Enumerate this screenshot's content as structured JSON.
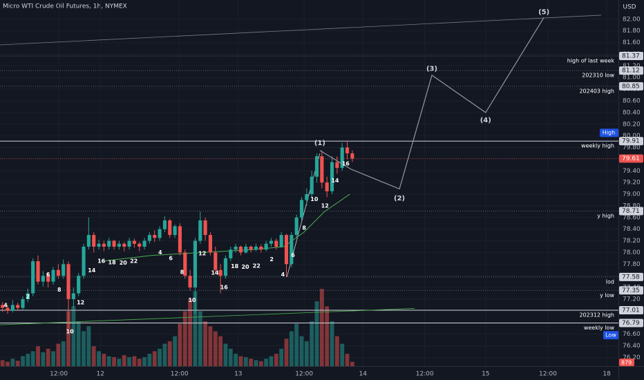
{
  "chart_data": {
    "type": "candlestick",
    "title": "Micro WTI Crude Oil Futures, 1h, NYMEX",
    "currency": "USD",
    "up_color": "#26a69a",
    "down_color": "#ef5350",
    "xlim": [
      0,
      122
    ],
    "ylim": [
      76.05,
      82.33
    ],
    "vlim": [
      0,
      18000
    ],
    "grid": true,
    "xticks": [
      {
        "value": 11.6,
        "label": "12:00"
      },
      {
        "value": 19.8,
        "label": "12"
      },
      {
        "value": 35.4,
        "label": "12:00"
      },
      {
        "value": 47,
        "label": "13"
      },
      {
        "value": 60,
        "label": "12:00"
      },
      {
        "value": 71.6,
        "label": "14"
      },
      {
        "value": 83.8,
        "label": "12:00"
      },
      {
        "value": 95.8,
        "label": "15"
      },
      {
        "value": 108.1,
        "label": "12:00"
      },
      {
        "value": 119.7,
        "label": "18"
      }
    ],
    "yticks": [
      {
        "value": 76.2,
        "label": "76.20"
      },
      {
        "value": 76.4,
        "label": "76.40"
      },
      {
        "value": 76.6,
        "label": "76.60"
      },
      {
        "value": 76.8,
        "label": "76.80"
      },
      {
        "value": 77,
        "label": "77.00"
      },
      {
        "value": 77.2,
        "label": "77.20"
      },
      {
        "value": 77.4,
        "label": "77.40"
      },
      {
        "value": 77.6,
        "label": "77.60"
      },
      {
        "value": 77.8,
        "label": "77.80"
      },
      {
        "value": 78,
        "label": "78.00"
      },
      {
        "value": 78.2,
        "label": "78.20"
      },
      {
        "value": 78.4,
        "label": "78.40"
      },
      {
        "value": 78.6,
        "label": "78.60"
      },
      {
        "value": 78.8,
        "label": "78.80"
      },
      {
        "value": 79,
        "label": "79.00"
      },
      {
        "value": 79.2,
        "label": "79.20"
      },
      {
        "value": 79.4,
        "label": "79.40"
      },
      {
        "value": 79.6,
        "label": "79.60"
      },
      {
        "value": 79.8,
        "label": "79.80"
      },
      {
        "value": 80,
        "label": "80.00"
      },
      {
        "value": 80.2,
        "label": "80.20"
      },
      {
        "value": 80.4,
        "label": "80.40"
      },
      {
        "value": 80.6,
        "label": "80.60"
      },
      {
        "value": 80.8,
        "label": "80.80"
      },
      {
        "value": 81,
        "label": "81.00"
      },
      {
        "value": 81.2,
        "label": "81.20"
      },
      {
        "value": 81.4,
        "label": "81.40"
      },
      {
        "value": 81.6,
        "label": "81.60"
      },
      {
        "value": 81.8,
        "label": "81.80"
      },
      {
        "value": 82,
        "label": "82.00"
      }
    ],
    "candles": {
      "x": [
        0.5,
        1.5,
        2.5,
        3.5,
        4.5,
        5.5,
        6.5,
        7.5,
        8.5,
        9.5,
        10.5,
        11.5,
        12.5,
        13.5,
        14.5,
        15.5,
        16.5,
        17.5,
        18.5,
        19.5,
        20.5,
        21.5,
        22.5,
        23.5,
        24.5,
        25.5,
        26.5,
        27.5,
        28.5,
        29.5,
        30.5,
        31.5,
        32.5,
        33.5,
        34.5,
        35.5,
        36.5,
        37.5,
        38.5,
        39.5,
        40.5,
        41.5,
        42.5,
        43.5,
        44.5,
        45.5,
        46.5,
        47.5,
        48.5,
        49.5,
        50.5,
        51.5,
        52.5,
        53.5,
        54.5,
        55.5,
        56.5,
        57.5,
        58.5,
        59.5,
        60.5,
        61.5,
        62.5,
        63.5,
        64.5,
        65.5,
        66.5,
        67.5,
        68.5,
        69.5
      ],
      "open": [
        77.1,
        77.05,
        77.0,
        77.1,
        77.05,
        77.2,
        77.3,
        77.85,
        77.5,
        77.6,
        77.5,
        77.7,
        77.6,
        77.8,
        77.2,
        77.3,
        77.6,
        78.1,
        78.3,
        78.1,
        78.15,
        78.1,
        78.2,
        78.1,
        78.15,
        78.1,
        78.2,
        78.15,
        78.1,
        78.2,
        78.3,
        78.25,
        78.4,
        78.55,
        78.3,
        78.45,
        78.0,
        77.6,
        77.4,
        78.2,
        78.55,
        78.3,
        78.0,
        77.7,
        77.6,
        77.9,
        78.05,
        78.1,
        78.0,
        78.1,
        78.05,
        78.1,
        78.05,
        78.15,
        78.2,
        78.1,
        78.3,
        77.8,
        78.3,
        78.6,
        78.9,
        79.0,
        79.3,
        79.65,
        79.2,
        79.05,
        79.55,
        79.45,
        79.8,
        79.7
      ],
      "high": [
        77.15,
        77.1,
        77.18,
        77.14,
        77.25,
        77.38,
        77.9,
        77.95,
        77.68,
        77.65,
        77.75,
        77.8,
        77.88,
        77.85,
        77.4,
        77.65,
        78.15,
        78.6,
        78.35,
        78.22,
        78.2,
        78.25,
        78.22,
        78.2,
        78.18,
        78.25,
        78.24,
        78.18,
        78.25,
        78.35,
        78.38,
        78.45,
        78.62,
        78.58,
        78.48,
        78.5,
        78.05,
        77.7,
        78.25,
        78.7,
        78.6,
        78.35,
        78.1,
        77.8,
        77.95,
        78.1,
        78.15,
        78.12,
        78.15,
        78.12,
        78.15,
        78.14,
        78.2,
        78.25,
        78.24,
        78.35,
        78.32,
        78.35,
        78.65,
        78.95,
        79.1,
        79.4,
        79.7,
        79.75,
        79.3,
        79.65,
        79.65,
        79.88,
        79.91,
        79.75
      ],
      "low": [
        76.98,
        76.95,
        76.97,
        77.0,
        77.02,
        77.15,
        77.25,
        77.45,
        77.42,
        77.4,
        77.45,
        77.55,
        77.55,
        76.7,
        77.05,
        77.25,
        77.55,
        78.05,
        78.0,
        78.05,
        78.02,
        78.05,
        78.05,
        78.05,
        78.02,
        78.05,
        78.08,
        78.02,
        78.05,
        78.15,
        78.18,
        78.2,
        78.35,
        78.25,
        78.25,
        77.95,
        77.55,
        77.35,
        76.95,
        78.15,
        78.2,
        77.95,
        77.65,
        77.3,
        77.55,
        77.85,
        78.0,
        77.95,
        77.98,
        78.0,
        78.02,
        78.0,
        78.02,
        78.1,
        78.05,
        78.08,
        77.58,
        77.75,
        78.25,
        78.55,
        78.8,
        78.95,
        79.2,
        79.1,
        78.95,
        79.0,
        79.35,
        79.4,
        79.6,
        79.55
      ],
      "close": [
        77.05,
        77.0,
        77.1,
        77.05,
        77.2,
        77.3,
        77.85,
        77.5,
        77.6,
        77.5,
        77.7,
        77.6,
        77.8,
        77.2,
        77.3,
        77.6,
        78.1,
        78.3,
        78.1,
        78.15,
        78.1,
        78.2,
        78.1,
        78.15,
        78.1,
        78.2,
        78.15,
        78.1,
        78.2,
        78.3,
        78.25,
        78.4,
        78.55,
        78.3,
        78.45,
        78.0,
        77.6,
        77.4,
        78.2,
        78.55,
        78.3,
        78.0,
        77.7,
        77.6,
        77.9,
        78.05,
        78.1,
        78.0,
        78.1,
        78.05,
        78.1,
        78.05,
        78.15,
        78.2,
        78.1,
        78.3,
        77.8,
        78.3,
        78.6,
        78.9,
        79.0,
        79.3,
        79.65,
        79.2,
        79.05,
        79.55,
        79.45,
        79.8,
        79.7,
        79.61
      ],
      "volume": [
        1200,
        900,
        1500,
        1100,
        2000,
        2500,
        3000,
        4000,
        2800,
        3500,
        3000,
        4500,
        5000,
        11000,
        12000,
        9000,
        7000,
        8000,
        4000,
        3000,
        2500,
        2000,
        1800,
        1500,
        2200,
        1800,
        2000,
        1500,
        1800,
        2500,
        3000,
        3500,
        4500,
        5000,
        6000,
        8500,
        11000,
        13500,
        15000,
        11000,
        9000,
        8000,
        7000,
        6000,
        4500,
        3500,
        2500,
        2000,
        1800,
        1500,
        1200,
        1000,
        1500,
        2000,
        2500,
        3500,
        5500,
        7000,
        8500,
        6000,
        5000,
        9000,
        13000,
        15500,
        12000,
        9000,
        6000,
        4500,
        2500,
        879
      ]
    },
    "ma": {
      "color": "#4caf50",
      "x": [
        20,
        30,
        40,
        50,
        56,
        60,
        64,
        69
      ],
      "values": [
        77.85,
        77.95,
        78.0,
        78.05,
        78.1,
        78.35,
        78.7,
        79.0
      ]
    },
    "levels": [
      {
        "price": 81.37,
        "label": "high of last week",
        "style": "dotted"
      },
      {
        "price": 81.12,
        "label": "202310 low",
        "style": "dotted"
      },
      {
        "price": 80.85,
        "label": "202403 high",
        "style": "dotted"
      },
      {
        "price": 79.91,
        "label": "weekly high",
        "style": "solid"
      },
      {
        "price": 78.71,
        "label": "y high",
        "style": "dotted"
      },
      {
        "price": 77.58,
        "label": "lod",
        "style": "dotted"
      },
      {
        "price": 77.35,
        "label": "y low",
        "style": "dotted"
      },
      {
        "price": 77.01,
        "label": "202312 high",
        "style": "solid"
      },
      {
        "price": 76.79,
        "label": "weekly low",
        "style": "solid"
      }
    ],
    "high_tag": "High",
    "low_tag": "Low",
    "trendlines": [
      {
        "color": "#787b86",
        "x": [
          0,
          118.6
        ],
        "values": [
          81.56,
          82.07
        ]
      },
      {
        "color": "#4caf50",
        "x": [
          0,
          81.8
        ],
        "values": [
          76.76,
          77.04
        ]
      },
      {
        "color": "#d1d4dc",
        "x": [
          56.6,
          63.1
        ],
        "values": [
          77.58,
          79.7
        ]
      }
    ],
    "wave": {
      "color": "#9598a1",
      "x": [
        63.1,
        69.2,
        78.8,
        85.2,
        95.8,
        107.3
      ],
      "values": [
        79.75,
        79.43,
        79.09,
        81.04,
        80.4,
        82.03
      ]
    },
    "wave_labels": [
      {
        "label": "(1)",
        "x": 63.1,
        "price": 79.88
      },
      {
        "label": "(2)",
        "x": 78.8,
        "price": 78.93
      },
      {
        "label": "(3)",
        "x": 85.2,
        "price": 81.15
      },
      {
        "label": "(4)",
        "x": 95.8,
        "price": 80.27
      },
      {
        "label": "(5)",
        "x": 107.3,
        "price": 82.12
      }
    ],
    "counts": [
      {
        "label": "4",
        "x": 1.1,
        "price": 77.09
      },
      {
        "label": "2",
        "x": 5.5,
        "price": 77.24
      },
      {
        "label": "6",
        "x": 9.5,
        "price": 77.62
      },
      {
        "label": "8",
        "x": 11.7,
        "price": 77.36
      },
      {
        "label": "10",
        "x": 13.8,
        "price": 76.64
      },
      {
        "label": "12",
        "x": 15.9,
        "price": 77.14
      },
      {
        "label": "14",
        "x": 18.1,
        "price": 77.69
      },
      {
        "label": "16",
        "x": 20.0,
        "price": 77.85
      },
      {
        "label": "18",
        "x": 22.1,
        "price": 77.83
      },
      {
        "label": "20",
        "x": 24.3,
        "price": 77.82
      },
      {
        "label": "22",
        "x": 26.4,
        "price": 77.85
      },
      {
        "label": "4",
        "x": 31.6,
        "price": 78.0
      },
      {
        "label": "6",
        "x": 33.7,
        "price": 77.9
      },
      {
        "label": "8",
        "x": 35.9,
        "price": 77.66
      },
      {
        "label": "10",
        "x": 37.9,
        "price": 77.18
      },
      {
        "label": "12",
        "x": 39.9,
        "price": 77.98
      },
      {
        "label": "14",
        "x": 42.4,
        "price": 77.65
      },
      {
        "label": "16",
        "x": 44.2,
        "price": 77.4
      },
      {
        "label": "18",
        "x": 46.3,
        "price": 77.76
      },
      {
        "label": "20",
        "x": 48.4,
        "price": 77.75
      },
      {
        "label": "22",
        "x": 50.6,
        "price": 77.77
      },
      {
        "label": "2",
        "x": 53.6,
        "price": 77.88
      },
      {
        "label": "4",
        "x": 55.8,
        "price": 77.62
      },
      {
        "label": "6",
        "x": 57.8,
        "price": 77.95
      },
      {
        "label": "8",
        "x": 60.0,
        "price": 78.42
      },
      {
        "label": "10",
        "x": 62.0,
        "price": 78.91
      },
      {
        "label": "12",
        "x": 64.1,
        "price": 78.8
      },
      {
        "label": "14",
        "x": 66.1,
        "price": 79.23
      },
      {
        "label": "16",
        "x": 68.2,
        "price": 79.52
      }
    ]
  }
}
